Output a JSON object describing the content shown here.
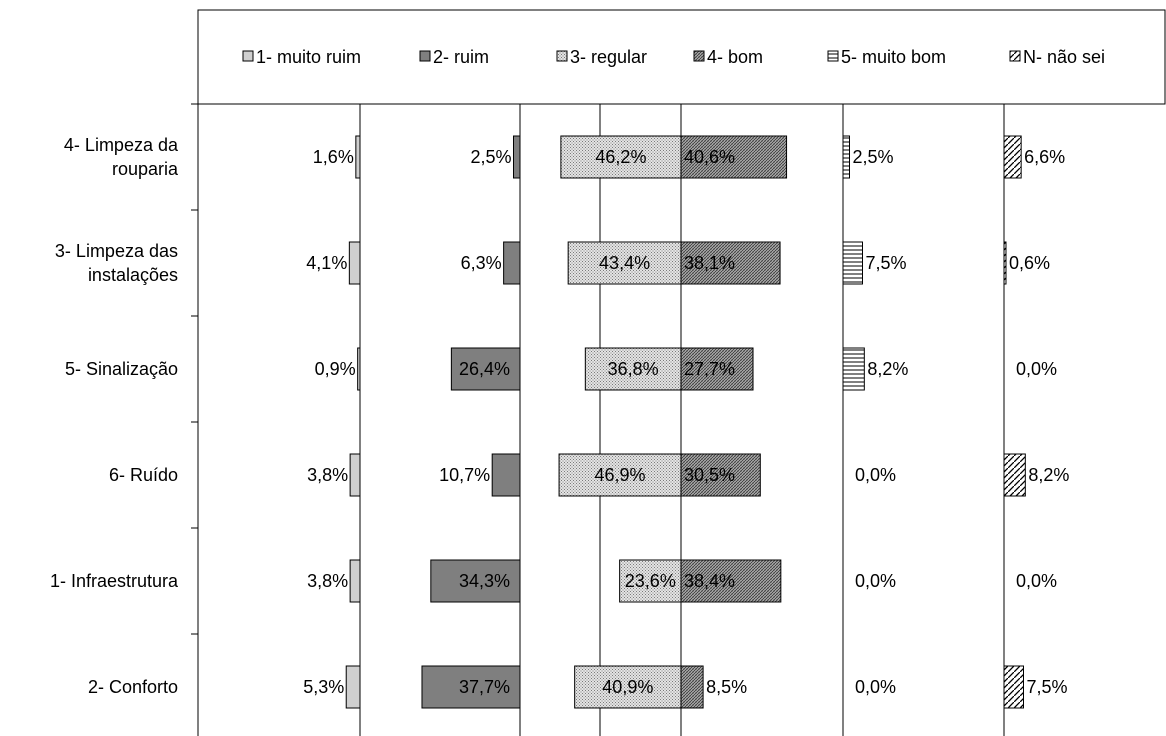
{
  "chart_data": {
    "type": "bar",
    "title": "",
    "xlabel": "",
    "ylabel": "",
    "categories": [
      "4- Limpeza da rouparia",
      "3- Limpeza das instalações",
      "5- Sinalização",
      "6- Ruído",
      "1- Infraestrutura",
      "2- Conforto"
    ],
    "category_lines": [
      [
        "4- Limpeza da",
        "rouparia"
      ],
      [
        "3- Limpeza das",
        "instalações"
      ],
      [
        "5- Sinalização"
      ],
      [
        "6- Ruído"
      ],
      [
        "1- Infraestrutura"
      ],
      [
        "2- Conforto"
      ]
    ],
    "legend_position": "top",
    "grid": "vertical",
    "series": [
      {
        "name": "1- muito ruim",
        "values": [
          1.6,
          4.1,
          0.9,
          3.8,
          3.8,
          5.3
        ],
        "labels": [
          "1,6%",
          "4,1%",
          "0,9%",
          "3,8%",
          "3,8%",
          "5,3%"
        ],
        "color": "#c8c8c8"
      },
      {
        "name": "2- ruim",
        "values": [
          2.5,
          6.3,
          26.4,
          10.7,
          34.3,
          37.7
        ],
        "labels": [
          "2,5%",
          "6,3%",
          "26,4%",
          "10,7%",
          "34,3%",
          "37,7%"
        ],
        "color": "#808080"
      },
      {
        "name": "3- regular",
        "values": [
          46.2,
          43.4,
          36.8,
          46.9,
          23.6,
          40.9
        ],
        "labels": [
          "46,2%",
          "43,4%",
          "36,8%",
          "46,9%",
          "23,6%",
          "40,9%"
        ],
        "color": "#d6d6d6"
      },
      {
        "name": "4- bom",
        "values": [
          40.6,
          38.1,
          27.7,
          30.5,
          38.4,
          8.5
        ],
        "labels": [
          "40,6%",
          "38,1%",
          "27,7%",
          "30,5%",
          "38,4%",
          "8,5%"
        ],
        "color": "#9a9a9a"
      },
      {
        "name": "5- muito bom",
        "values": [
          2.5,
          7.5,
          8.2,
          0.0,
          0.0,
          0.0
        ],
        "labels": [
          "2,5%",
          "7,5%",
          "8,2%",
          "0,0%",
          "0,0%",
          "0,0%"
        ],
        "color": "#ffffff"
      },
      {
        "name": "N- não sei",
        "values": [
          6.6,
          0.6,
          0.0,
          8.2,
          0.0,
          7.5
        ],
        "labels": [
          "6,6%",
          "0,6%",
          "0,0%",
          "8,2%",
          "0,0%",
          "7,5%"
        ],
        "color": "#ffffff"
      }
    ]
  }
}
